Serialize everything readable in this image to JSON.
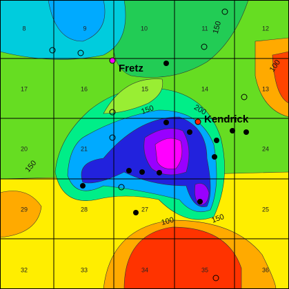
{
  "sections": [
    "8",
    "9",
    "10",
    "11",
    "12",
    "17",
    "16",
    "15",
    "14",
    "13",
    "20",
    "21",
    "24",
    "29",
    "28",
    "27",
    "25",
    "32",
    "33",
    "34",
    "35",
    "36"
  ],
  "contour_labels": [
    "150",
    "100",
    "150",
    "200",
    "150",
    "100",
    "150"
  ],
  "wells": [
    "Fretz",
    "Kendrick"
  ]
}
